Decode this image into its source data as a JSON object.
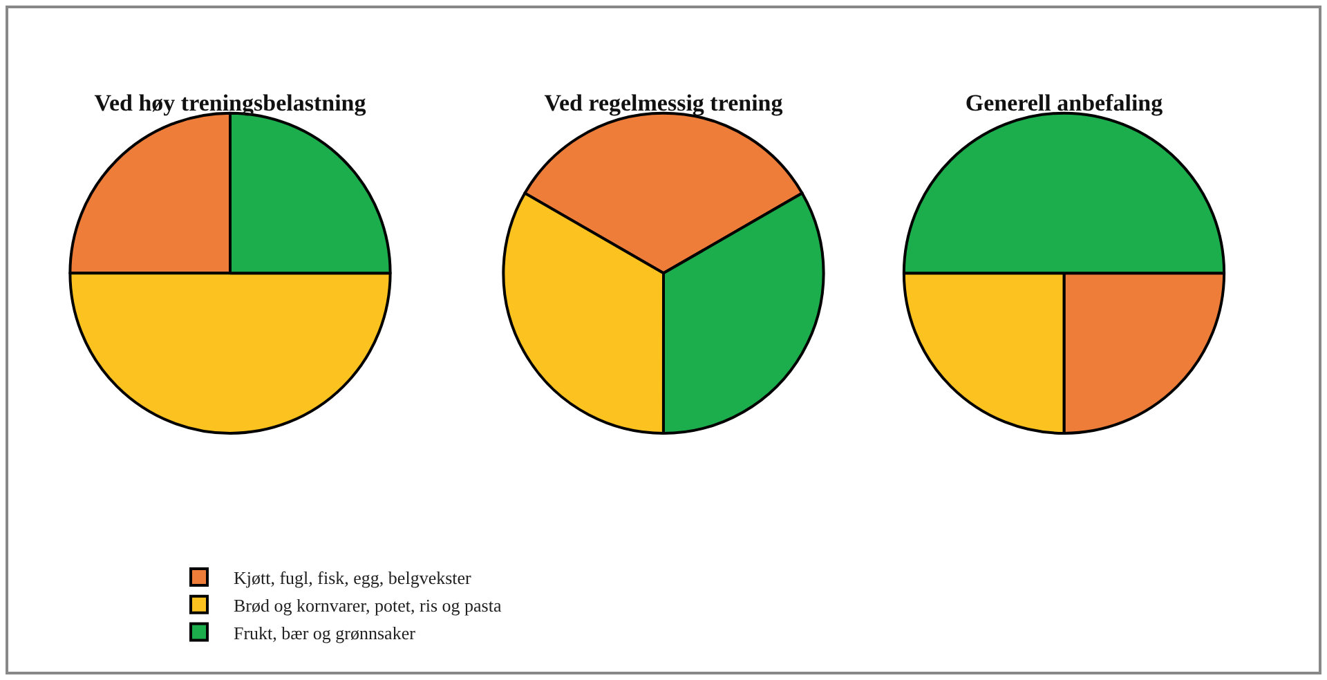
{
  "chart_data": {
    "type": "pie",
    "categories": [
      "Kjøtt, fugl, fisk, egg, belgvekster",
      "Brød og kornvarer, potet, ris og pasta",
      "Frukt, bær og grønnsaker"
    ],
    "colors": [
      "#ef7d3a",
      "#fcc220",
      "#1cad4c"
    ],
    "legend": "bottom left",
    "series": [
      {
        "name": "Ved høy treningsbelastning",
        "values": [
          25,
          50,
          25
        ]
      },
      {
        "name": "Ved regelmessig trening",
        "values": [
          33.33,
          33.33,
          33.34
        ]
      },
      {
        "name": "Generell anbefaling",
        "values": [
          25,
          25,
          50
        ]
      }
    ]
  }
}
